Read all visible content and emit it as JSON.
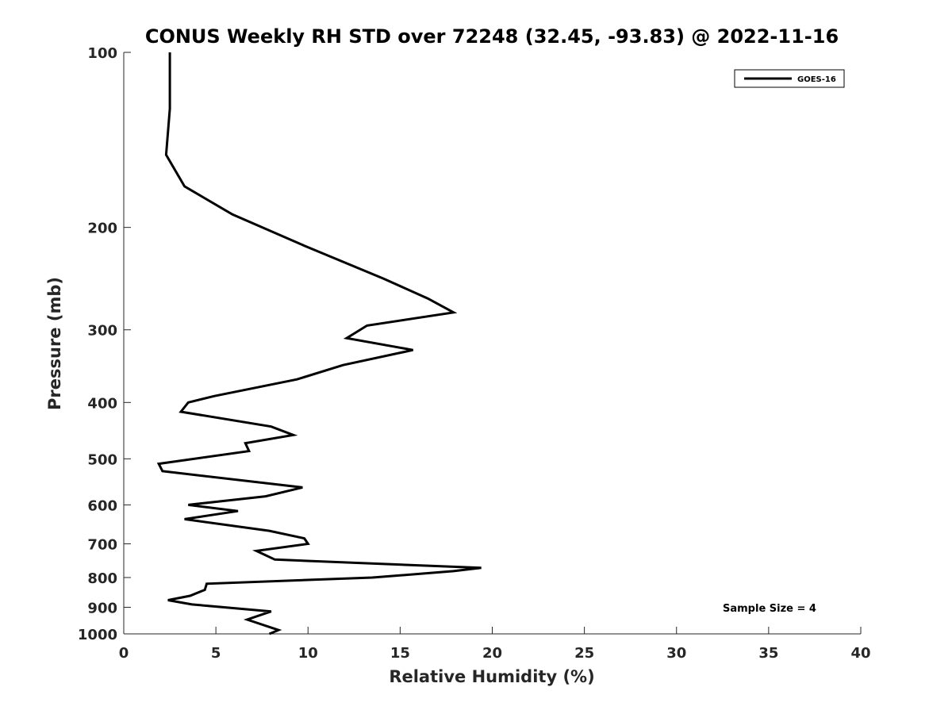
{
  "chart_data": {
    "type": "line",
    "title": "CONUS Weekly RH STD over 72248 (32.45, -93.83) @ 2022-11-16",
    "xlabel": "Relative Humidity (%)",
    "ylabel": "Pressure (mb)",
    "xlim": [
      0,
      40
    ],
    "ylim": [
      1000,
      100
    ],
    "yscale": "log",
    "y_reversed": true,
    "x_ticks": [
      0,
      5,
      10,
      15,
      20,
      25,
      30,
      35,
      40
    ],
    "y_ticks": [
      100,
      200,
      300,
      400,
      500,
      600,
      700,
      800,
      900,
      1000
    ],
    "grid": false,
    "legend_position": "top-right",
    "annotation": "Sample Size = 4",
    "series": [
      {
        "name": "GOES-16",
        "color": "#000000",
        "points": [
          [
            2.5,
            100
          ],
          [
            2.5,
            125
          ],
          [
            2.3,
            150
          ],
          [
            3.3,
            170
          ],
          [
            5.9,
            190
          ],
          [
            9.8,
            215
          ],
          [
            14.1,
            245
          ],
          [
            16.5,
            265
          ],
          [
            17.9,
            280
          ],
          [
            13.2,
            295
          ],
          [
            12.1,
            310
          ],
          [
            15.7,
            325
          ],
          [
            11.9,
            345
          ],
          [
            9.4,
            365
          ],
          [
            4.9,
            390
          ],
          [
            3.5,
            400
          ],
          [
            3.1,
            415
          ],
          [
            8.0,
            440
          ],
          [
            9.2,
            455
          ],
          [
            6.6,
            470
          ],
          [
            6.8,
            485
          ],
          [
            1.9,
            510
          ],
          [
            2.1,
            525
          ],
          [
            9.7,
            560
          ],
          [
            7.7,
            580
          ],
          [
            3.5,
            600
          ],
          [
            6.2,
            615
          ],
          [
            3.3,
            635
          ],
          [
            7.9,
            665
          ],
          [
            9.8,
            685
          ],
          [
            10.0,
            700
          ],
          [
            7.2,
            720
          ],
          [
            8.2,
            745
          ],
          [
            19.4,
            770
          ],
          [
            17.9,
            780
          ],
          [
            13.5,
            800
          ],
          [
            4.5,
            820
          ],
          [
            4.4,
            840
          ],
          [
            3.6,
            860
          ],
          [
            2.4,
            875
          ],
          [
            3.7,
            890
          ],
          [
            8.0,
            915
          ],
          [
            6.7,
            945
          ],
          [
            8.4,
            985
          ],
          [
            7.9,
            1000
          ]
        ]
      }
    ]
  }
}
